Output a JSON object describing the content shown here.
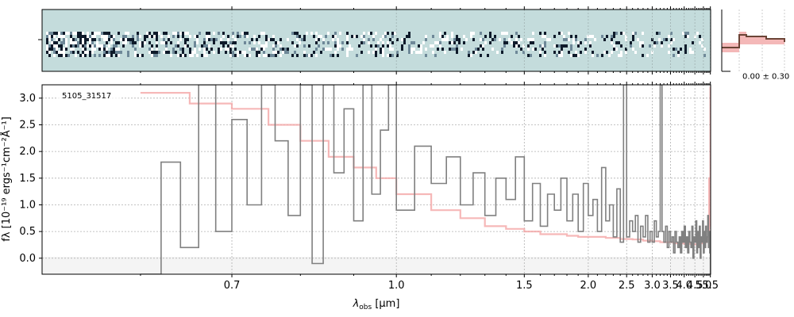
{
  "chart_data": {
    "type": "line",
    "annotation": "5105_31517",
    "xlabel_main": "λ",
    "xlabel_sub": "obs",
    "xlabel_unit": " [μm]",
    "ylabel": "fλ [10⁻¹⁹ ergs⁻¹cm⁻²Å⁻¹]",
    "xlim": [
      0.52,
      5.52
    ],
    "ylim": [
      -0.3,
      3.25
    ],
    "x_scale": "reciprocal",
    "xticks": [
      0.7,
      1.0,
      1.5,
      2.0,
      2.5,
      3.0,
      3.5,
      4.0,
      4.5,
      5.0,
      5.5
    ],
    "xtick_labels": [
      "0.7",
      "1.0",
      "1.5",
      "2.0",
      "2.5",
      "3.0",
      "3.5",
      "4.0",
      "4.5",
      "5.0",
      "5.5"
    ],
    "yticks": [
      0.0,
      0.5,
      1.0,
      1.5,
      2.0,
      2.5,
      3.0
    ],
    "ytick_labels": [
      "0.0",
      "0.5",
      "1.0",
      "1.5",
      "2.0",
      "2.5",
      "3.0"
    ],
    "grid": true,
    "series": [
      {
        "color": "#808080",
        "x": [
          0.6,
          0.62,
          0.64,
          0.66,
          0.68,
          0.7,
          0.72,
          0.74,
          0.76,
          0.78,
          0.8,
          0.82,
          0.84,
          0.86,
          0.88,
          0.9,
          0.92,
          0.94,
          0.96,
          0.98,
          1.0,
          1.05,
          1.1,
          1.15,
          1.2,
          1.25,
          1.3,
          1.35,
          1.4,
          1.45,
          1.5,
          1.55,
          1.6,
          1.65,
          1.7,
          1.75,
          1.8,
          1.85,
          1.9,
          1.95,
          2.0,
          2.05,
          2.1,
          2.15,
          2.2,
          2.25,
          2.3,
          2.35,
          2.4,
          2.45,
          2.5,
          2.55,
          2.6,
          2.65,
          2.7,
          2.75,
          2.8,
          2.85,
          2.9,
          2.95,
          3.0,
          3.05,
          3.1,
          3.15,
          3.2,
          3.25,
          3.3,
          3.35,
          3.4,
          3.45,
          3.5,
          3.55,
          3.6,
          3.65,
          3.7,
          3.75,
          3.8,
          3.85,
          3.9,
          3.95,
          4.0,
          4.05,
          4.1,
          4.15,
          4.2,
          4.25,
          4.3,
          4.35,
          4.4,
          4.45,
          4.5,
          4.55,
          4.6,
          4.65,
          4.7,
          4.75,
          4.8,
          4.85,
          4.9,
          4.95,
          5.0,
          5.05,
          5.1,
          5.15,
          5.2,
          5.25,
          5.3,
          5.35,
          5.4,
          5.45,
          5.5
        ],
        "y": [
          -0.3,
          1.8,
          0.2,
          3.25,
          0.5,
          2.6,
          1.0,
          3.25,
          2.2,
          0.8,
          3.25,
          -0.1,
          3.25,
          1.6,
          2.8,
          0.7,
          3.25,
          1.2,
          2.4,
          3.25,
          0.9,
          2.1,
          1.4,
          1.9,
          1.0,
          1.6,
          0.8,
          1.5,
          1.1,
          1.9,
          0.7,
          1.4,
          0.6,
          1.2,
          0.9,
          1.5,
          0.7,
          1.2,
          0.5,
          1.4,
          0.8,
          1.1,
          0.5,
          1.7,
          0.7,
          1.0,
          0.4,
          1.3,
          0.3,
          3.25,
          0.4,
          0.7,
          0.5,
          0.8,
          0.3,
          0.6,
          0.4,
          0.8,
          0.3,
          0.5,
          0.3,
          0.7,
          0.4,
          0.5,
          3.25,
          0.5,
          0.3,
          0.6,
          0.2,
          0.5,
          0.3,
          0.4,
          0.1,
          0.5,
          0.3,
          0.2,
          0.4,
          0.1,
          0.5,
          0.3,
          0.6,
          0.2,
          0.4,
          0.1,
          0.5,
          0.3,
          0.2,
          0.6,
          0.0,
          0.4,
          0.3,
          0.7,
          0.1,
          0.5,
          0.2,
          0.6,
          0.0,
          0.4,
          0.3,
          0.7,
          0.1,
          0.5,
          0.2,
          0.6,
          0.3,
          0.4,
          0.8,
          0.2,
          0.5,
          0.1,
          -0.3
        ]
      },
      {
        "color": "#f4a6a6",
        "x": [
          0.6,
          0.65,
          0.7,
          0.75,
          0.8,
          0.85,
          0.9,
          0.95,
          1.0,
          1.1,
          1.2,
          1.3,
          1.4,
          1.5,
          1.6,
          1.7,
          1.8,
          1.9,
          2.0,
          2.2,
          2.4,
          2.6,
          2.8,
          3.0,
          3.2,
          3.4,
          3.6,
          3.8,
          4.0,
          4.2,
          4.4,
          4.6,
          4.8,
          5.0,
          5.2,
          5.3,
          5.4,
          5.45,
          5.48,
          5.5
        ],
        "y": [
          3.1,
          2.9,
          2.8,
          2.5,
          2.2,
          1.9,
          1.7,
          1.5,
          1.2,
          0.9,
          0.75,
          0.6,
          0.55,
          0.5,
          0.45,
          0.45,
          0.42,
          0.4,
          0.4,
          0.38,
          0.36,
          0.35,
          0.33,
          0.32,
          0.3,
          0.3,
          0.28,
          0.28,
          0.27,
          0.27,
          0.26,
          0.27,
          0.28,
          0.3,
          0.35,
          0.4,
          1.5,
          0.6,
          1.0,
          3.2
        ]
      }
    ],
    "side_panel": {
      "label": "0.00 ± 0.30",
      "line_color": "#6b4436",
      "fill_color": "#f4b8b8"
    },
    "spectrum_2d": {
      "background": "#c4dcdc"
    }
  }
}
